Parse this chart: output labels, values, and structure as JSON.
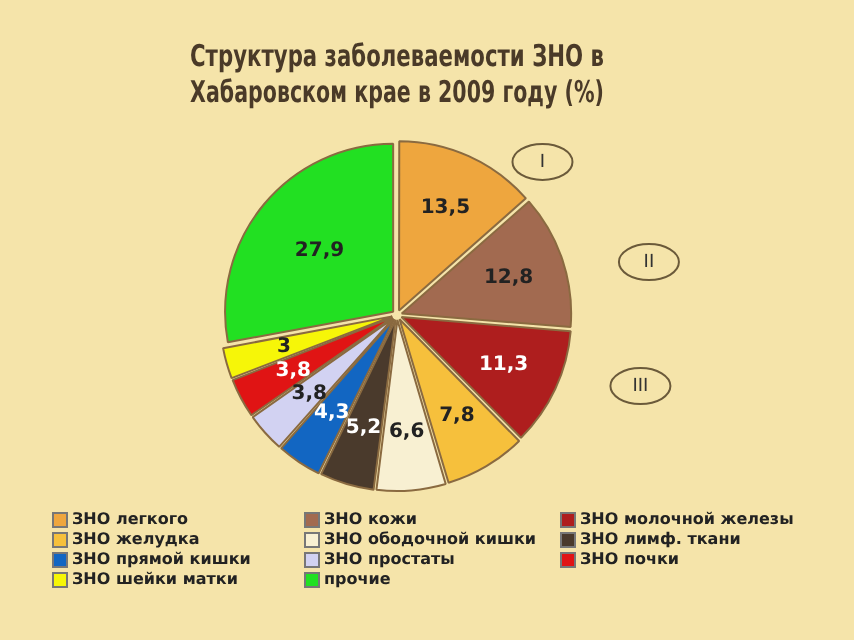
{
  "chart_data": {
    "type": "pie",
    "title": "Структура заболеваемости ЗНО в Хабаровском крае в 2009 году (%)",
    "categories": [
      "ЗНО легкого",
      "ЗНО кожи",
      "ЗНО молочной железы",
      "ЗНО желудка",
      "ЗНО ободочной кишки",
      "ЗНО лимф. ткани",
      "ЗНО прямой кишки",
      "ЗНО простаты",
      "ЗНО почки",
      "ЗНО шейки матки",
      "прочие"
    ],
    "values": [
      13.5,
      12.8,
      11.3,
      7.8,
      6.6,
      5.2,
      4.3,
      3.8,
      3.8,
      3,
      27.9
    ],
    "colors": [
      "#eea63e",
      "#a26a50",
      "#ae1e1e",
      "#f6c03c",
      "#f8f0d2",
      "#4a3a2c",
      "#1266c2",
      "#d2d2f2",
      "#e01414",
      "#f6f608",
      "#22e022"
    ],
    "value_labels": [
      "13,5",
      "12,8",
      "11,3",
      "7,8",
      "6,6",
      "5,2",
      "4,3",
      "3,8",
      "3,8",
      "3",
      "27,9"
    ],
    "legend": "bottom",
    "annotations": [
      "I",
      "II",
      "III"
    ]
  }
}
